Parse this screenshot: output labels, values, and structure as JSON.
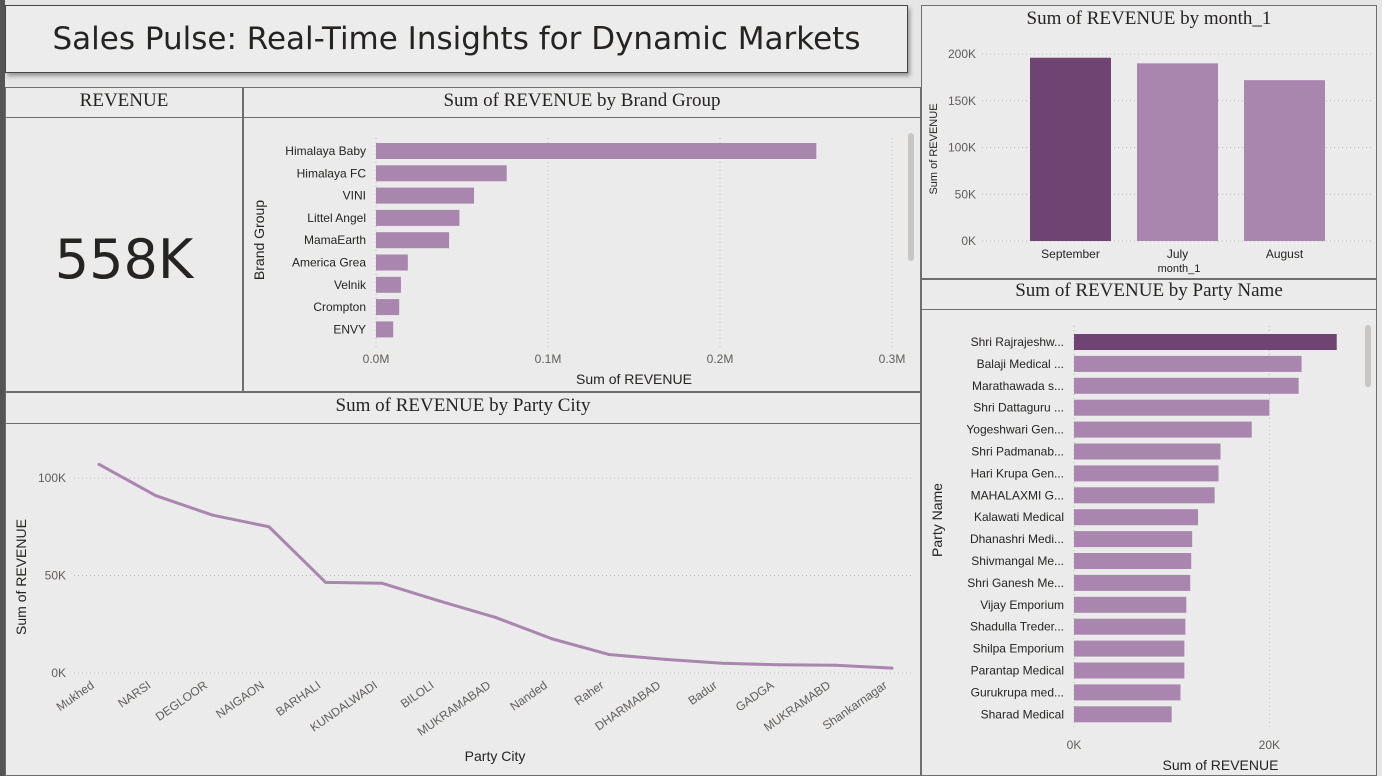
{
  "page_title": "Sales Pulse: Real-Time Insights for Dynamic Markets",
  "colors": {
    "bar": "#a986ae",
    "highlight": "#6f4372",
    "line": "#a986ae",
    "grid": "#b8b8b8",
    "axis_text": "#605e5c"
  },
  "kpi": {
    "title": "REVENUE",
    "value": "558K"
  },
  "chart_data": [
    {
      "id": "brand",
      "type": "bar",
      "orientation": "horizontal",
      "title": "Sum of REVENUE by Brand Group",
      "xlabel": "Sum of REVENUE",
      "ylabel": "Brand Group",
      "categories": [
        "Himalaya Baby",
        "Himalaya FC",
        "VINI",
        "Littel Angel",
        "MamaEarth",
        "America Grea",
        "Velnik",
        "Crompton",
        "ENVY"
      ],
      "values": [
        256000,
        76000,
        57000,
        48500,
        42500,
        18500,
        14500,
        13500,
        10000
      ],
      "xlim": [
        0,
        300000
      ],
      "ticks": [
        0,
        100000,
        200000,
        300000
      ],
      "tick_labels": [
        "0.0M",
        "0.1M",
        "0.2M",
        "0.3M"
      ],
      "grid": true
    },
    {
      "id": "month",
      "type": "bar",
      "orientation": "vertical",
      "title": "Sum of REVENUE by month_1",
      "xlabel": "month_1",
      "ylabel": "Sum of REVENUE",
      "categories": [
        "September",
        "July",
        "August"
      ],
      "values": [
        196000,
        190000,
        172000
      ],
      "highlight_index": 0,
      "ylim": [
        0,
        200000
      ],
      "ticks": [
        0,
        50000,
        100000,
        150000,
        200000
      ],
      "tick_labels": [
        "0K",
        "50K",
        "100K",
        "150K",
        "200K"
      ],
      "grid": true
    },
    {
      "id": "city",
      "type": "line",
      "title": "Sum of REVENUE by Party City",
      "xlabel": "Party City",
      "ylabel": "Sum of REVENUE",
      "categories": [
        "Mukhed",
        "NARSI",
        "DEGLOOR",
        "NAIGAON",
        "BARHALI",
        "KUNDALWADI",
        "BILOLI",
        "MUKRAMABAD",
        "Nanded",
        "Raher",
        "DHARMABAD",
        "Badur",
        "GADGA",
        "MUKRAMABD",
        "Shankarnagar"
      ],
      "values": [
        107000,
        91000,
        81000,
        75000,
        46500,
        46000,
        37000,
        28500,
        17500,
        9500,
        7000,
        5000,
        4200,
        4000,
        2500
      ],
      "ylim": [
        0,
        110000
      ],
      "ticks": [
        0,
        50000,
        100000
      ],
      "tick_labels": [
        "0K",
        "50K",
        "100K"
      ],
      "grid": true
    },
    {
      "id": "party",
      "type": "bar",
      "orientation": "horizontal",
      "title": "Sum of REVENUE by Party Name",
      "xlabel": "Sum of REVENUE",
      "ylabel": "Party Name",
      "categories": [
        "Shri Rajrajeshw...",
        "Balaji Medical ...",
        "Marathawada s...",
        "Shri Dattaguru ...",
        "Yogeshwari Gen...",
        "Shri Padmanab...",
        "Hari Krupa Gen...",
        "MAHALAXMI G...",
        "Kalawati Medical",
        "Dhanashri Medi...",
        "Shivmangal Me...",
        "Shri Ganesh Me...",
        "Vijay Emporium",
        "Shadulla Treder...",
        "Shilpa Emporium",
        "Parantap Medical",
        "Gurukrupa med...",
        "Sharad Medical"
      ],
      "values": [
        26900,
        23300,
        23000,
        20000,
        18200,
        15000,
        14800,
        14400,
        12700,
        12100,
        12000,
        11900,
        11500,
        11400,
        11300,
        11300,
        10900,
        10000
      ],
      "highlight_index": 0,
      "xlim": [
        0,
        30000
      ],
      "ticks": [
        0,
        20000
      ],
      "tick_labels": [
        "0K",
        "20K"
      ],
      "grid": true
    }
  ]
}
